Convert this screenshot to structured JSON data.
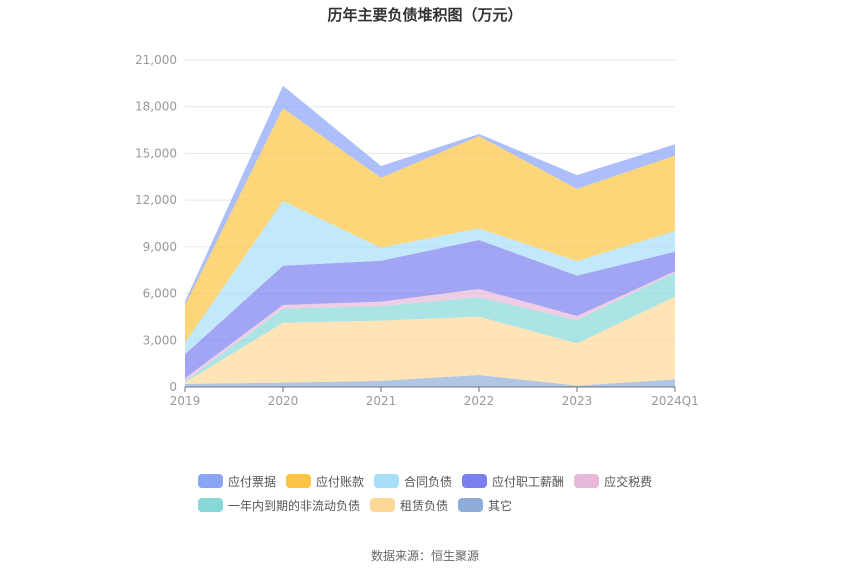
{
  "chart_data": {
    "type": "area",
    "stacked": true,
    "title": "历年主要负债堆积图（万元）",
    "categories": [
      "2019",
      "2020",
      "2021",
      "2022",
      "2023",
      "2024Q1"
    ],
    "ylim": [
      0,
      21000
    ],
    "yticks": [
      "0",
      "3,000",
      "6,000",
      "9,000",
      "12,000",
      "15,000",
      "18,000",
      "21,000"
    ],
    "grid": true,
    "legend_position": "bottom",
    "series": [
      {
        "name": "其它",
        "color": "#8eaed8",
        "values": [
          200,
          280,
          390,
          770,
          90,
          490
        ]
      },
      {
        "name": "租赁负债",
        "color": "#fdd898",
        "values": [
          100,
          3850,
          3870,
          3750,
          2710,
          5310
        ]
      },
      {
        "name": "一年内到期的非流动负债",
        "color": "#88d8d8",
        "values": [
          80,
          900,
          940,
          1240,
          1500,
          1540
        ]
      },
      {
        "name": "应交税费",
        "color": "#e8b8d8",
        "values": [
          180,
          240,
          280,
          530,
          260,
          90
        ]
      },
      {
        "name": "应付职工薪酬",
        "color": "#7b7ff0",
        "values": [
          1540,
          2520,
          2630,
          3150,
          2590,
          1260
        ]
      },
      {
        "name": "合同负债",
        "color": "#a8dff8",
        "values": [
          750,
          4160,
          840,
          750,
          940,
          1330
        ]
      },
      {
        "name": "应付账款",
        "color": "#fcc440",
        "values": [
          2400,
          5950,
          4490,
          5930,
          4630,
          4840
        ]
      },
      {
        "name": "应付票据",
        "color": "#8aa4f8",
        "values": [
          230,
          1450,
          750,
          130,
          890,
          730
        ]
      }
    ],
    "legend_order": [
      "应付票据",
      "应付账款",
      "合同负债",
      "应付职工薪酬",
      "应交税费",
      "一年内到期的非流动负债",
      "租赁负债",
      "其它"
    ]
  },
  "source": "数据来源：恒生聚源"
}
